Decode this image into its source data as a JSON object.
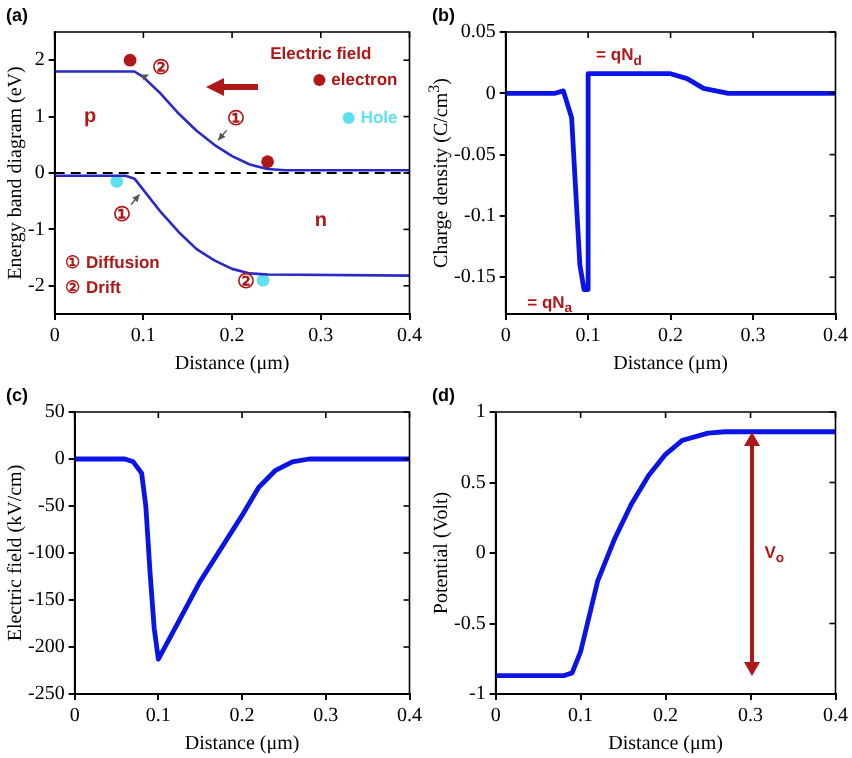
{
  "chart_data": [
    {
      "type": "line",
      "title": "(a)",
      "xlabel": "Distance (μm)",
      "ylabel": "Energy band diagram (eV)",
      "xlim": [
        0,
        0.4
      ],
      "xticks": [
        0,
        0.1,
        0.2,
        0.3,
        0.4
      ],
      "ylim": [
        -2.5,
        2.5
      ],
      "yticks": [
        -2,
        -1,
        0,
        1,
        2
      ],
      "grid": false,
      "legend": "top right",
      "series": [
        {
          "type": "line",
          "color": "#2a2ac8",
          "marker": "none",
          "line_style": "solid",
          "x": [
            0,
            0.09,
            0.1,
            0.12,
            0.14,
            0.16,
            0.18,
            0.2,
            0.22,
            0.24,
            0.26,
            0.4
          ],
          "values": [
            1.8,
            1.8,
            1.7,
            1.4,
            1.05,
            0.75,
            0.5,
            0.3,
            0.15,
            0.07,
            0.05,
            0.05
          ]
        },
        {
          "type": "line",
          "color": "#2a2ac8",
          "marker": "none",
          "line_style": "solid",
          "x": [
            0,
            0.08,
            0.09,
            0.1,
            0.12,
            0.14,
            0.16,
            0.18,
            0.2,
            0.22,
            0.24,
            0.4
          ],
          "values": [
            -0.05,
            -0.05,
            -0.1,
            -0.3,
            -0.7,
            -1.05,
            -1.35,
            -1.55,
            -1.7,
            -1.78,
            -1.8,
            -1.82
          ]
        },
        {
          "type": "scatter",
          "name": "electron",
          "color": "#b01818",
          "marker": "circle",
          "x": [
            0.085,
            0.24
          ],
          "values": [
            2.0,
            0.2
          ]
        },
        {
          "type": "scatter",
          "name": "Hole",
          "color": "#5ee0f0",
          "marker": "circle",
          "x": [
            0.07,
            0.235
          ],
          "values": [
            -0.15,
            -1.9
          ]
        }
      ],
      "ref_lines": [
        {
          "axis": "y",
          "value": 0,
          "color": "#000000",
          "line_style": "dashed"
        }
      ],
      "annotations": [
        "Electric field",
        "②",
        "①",
        "①",
        "②",
        "p",
        "n",
        "① Diffusion",
        "② Drift"
      ]
    },
    {
      "type": "line",
      "title": "(b)",
      "xlabel": "Distance (μm)",
      "ylabel": "Charge density (C/cm$^{3}$)",
      "xlim": [
        0,
        0.4
      ],
      "xticks": [
        0,
        0.1,
        0.2,
        0.3,
        0.4
      ],
      "ylim": [
        -0.18,
        0.05
      ],
      "yticks": [
        -0.15,
        -0.1,
        -0.05,
        0,
        0.05
      ],
      "grid": false,
      "series": [
        {
          "type": "line",
          "color": "#0a14e6",
          "marker": "none",
          "line_style": "solid",
          "x": [
            0,
            0.06,
            0.07,
            0.08,
            0.085,
            0.09,
            0.095,
            0.1,
            0.1,
            0.2,
            0.22,
            0.24,
            0.27,
            0.4
          ],
          "values": [
            0,
            0,
            0.002,
            -0.02,
            -0.08,
            -0.14,
            -0.16,
            -0.16,
            0.016,
            0.016,
            0.012,
            0.004,
            0,
            0
          ]
        }
      ],
      "annotations": [
        {
          "text": "= qN$_{d}$",
          "x": 0.1,
          "y": 0.016
        },
        {
          "text": "= qN$_{a}$",
          "x": 0.1,
          "y": -0.16
        }
      ]
    },
    {
      "type": "line",
      "title": "(c)",
      "xlabel": "Distance (μm)",
      "ylabel": "Electric field (kV/cm)",
      "xlim": [
        0,
        0.4
      ],
      "xticks": [
        0,
        0.1,
        0.2,
        0.3,
        0.4
      ],
      "ylim": [
        -250,
        50
      ],
      "yticks": [
        -250,
        -200,
        -150,
        -100,
        -50,
        0,
        50
      ],
      "grid": false,
      "series": [
        {
          "type": "line",
          "color": "#0a14e6",
          "marker": "none",
          "line_style": "solid",
          "x": [
            0,
            0.06,
            0.07,
            0.08,
            0.085,
            0.09,
            0.095,
            0.1,
            0.12,
            0.15,
            0.2,
            0.22,
            0.24,
            0.26,
            0.28,
            0.4
          ],
          "values": [
            0,
            0,
            -3,
            -15,
            -50,
            -120,
            -180,
            -213,
            -180,
            -130,
            -60,
            -30,
            -12,
            -3,
            0,
            0
          ]
        }
      ]
    },
    {
      "type": "line",
      "title": "(d)",
      "xlabel": "Distance (μm)",
      "ylabel": "Potential (Volt)",
      "xlim": [
        0,
        0.4
      ],
      "xticks": [
        0,
        0.1,
        0.2,
        0.3,
        0.4
      ],
      "ylim": [
        -1,
        1
      ],
      "yticks": [
        -1,
        -0.5,
        0,
        0.5,
        1
      ],
      "grid": false,
      "series": [
        {
          "type": "line",
          "color": "#0a14e6",
          "marker": "none",
          "line_style": "solid",
          "x": [
            0,
            0.08,
            0.09,
            0.1,
            0.11,
            0.12,
            0.14,
            0.16,
            0.18,
            0.2,
            0.22,
            0.25,
            0.27,
            0.4
          ],
          "values": [
            -0.87,
            -0.87,
            -0.85,
            -0.7,
            -0.45,
            -0.2,
            0.1,
            0.35,
            0.55,
            0.7,
            0.8,
            0.85,
            0.86,
            0.86
          ]
        }
      ],
      "annotations": [
        "V$_{o}$"
      ]
    }
  ]
}
